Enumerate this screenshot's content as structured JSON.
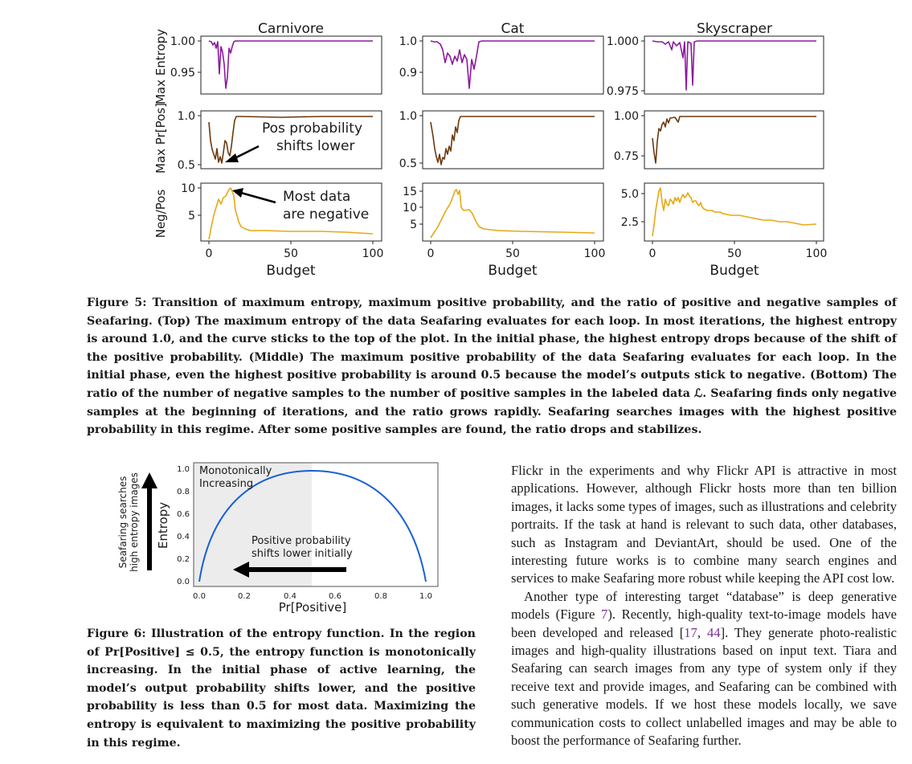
{
  "figure5": {
    "panels": [
      "Carnivore",
      "Cat",
      "Skyscraper"
    ],
    "row_labels": [
      "Max Entropy",
      "Max Pr[Pos]",
      "Neg/Pos"
    ],
    "x_label": "Budget",
    "x_ticks": [
      "0",
      "50",
      "100"
    ],
    "y_ticks": {
      "entropy": [
        [
          "1.00",
          "0.95"
        ],
        [
          "1.0",
          "0.9"
        ],
        [
          "1.000",
          "0.975"
        ]
      ],
      "prpos": [
        [
          "1.0",
          "0.5"
        ],
        [
          "1.0",
          "0.5"
        ],
        [
          "1.00",
          "0.75"
        ]
      ],
      "negpos": [
        [
          "10",
          "5"
        ],
        [
          "15",
          "10",
          "5"
        ],
        [
          "5.0",
          "2.5"
        ]
      ]
    },
    "annotations": {
      "pos_shift_line1": "Pos probability",
      "pos_shift_line2": "shifts lower",
      "negative_line1": "Most data",
      "negative_line2": "are negative"
    },
    "colors": {
      "entropy": "#8b1a9e",
      "prpos": "#6b3a10",
      "negpos": "#e6a817"
    },
    "caption_label": "Figure 5:",
    "caption": "Transition of maximum entropy, maximum positive probability, and the ratio of positive and negative samples of Seafaring. (Top) The maximum entropy of the data Seafaring evaluates for each loop. In most iterations, the highest entropy is around 1.0, and the curve sticks to the top of the plot. In the initial phase, the highest entropy drops because of the shift of the positive probability. (Middle) The maximum positive probability of the data Seafaring evaluates for each loop. In the initial phase, even the highest positive probability is around 0.5 because the model’s outputs stick to negative. (Bottom) The ratio of the number of negative samples to the number of positive samples in the labeled data ℒ. Seafaring finds only negative samples at the beginning of iterations, and the ratio grows rapidly. Seafaring searches images with the highest positive probability in this regime. After some positive samples are found, the ratio drops and stabilizes."
  },
  "figure6": {
    "y_label": "Entropy",
    "x_label": "Pr[Positive]",
    "x_ticks": [
      "0.0",
      "0.2",
      "0.4",
      "0.6",
      "0.8",
      "1.0"
    ],
    "y_ticks": [
      "0.0",
      "0.2",
      "0.4",
      "0.6",
      "0.8",
      "1.0"
    ],
    "region_label_line1": "Monotonically",
    "region_label_line2": "Increasing",
    "shift_label_line1": "Positive probability",
    "shift_label_line2": "shifts lower initially",
    "side_label_line1": "Seafaring searches",
    "side_label_line2": "high entropy images",
    "caption_label": "Figure 6:",
    "caption": "Illustration of the entropy function. In the region of Pr[Positive] ≤ 0.5, the entropy function is monotonically increasing. In the initial phase of active learning, the model’s output probability shifts lower, and the positive probability is less than 0.5 for most data. Maximizing the entropy is equivalent to maximizing the positive probability in this regime."
  },
  "body": {
    "para1": "Flickr in the experiments and why Flickr API is attractive in most applications. However, although Flickr hosts more than ten billion images, it lacks some types of images, such as illustrations and celebrity portraits. If the task at hand is relevant to such data, other databases, such as Instagram and DeviantArt, should be used. One of the interesting future works is to combine many search engines and services to make Seafaring more robust while keeping the API cost low.",
    "para2_a": "Another type of interesting target “database” is deep generative models (Figure ",
    "para2_fig": "7",
    "para2_b": "). Recently, high-quality text-to-image models have been developed and released [",
    "para2_cite1": "17",
    "para2_c": ", ",
    "para2_cite2": "44",
    "para2_d": "]. They generate photo-realistic images and high-quality illustrations based on input text. Tiara and Seafaring can search images from any type of system only if they receive text and provide images, and Seafaring can be combined with such generative models. If we host these models locally, we save communication costs to collect unlabelled images and may be able to boost the performance of Seafaring further."
  }
}
